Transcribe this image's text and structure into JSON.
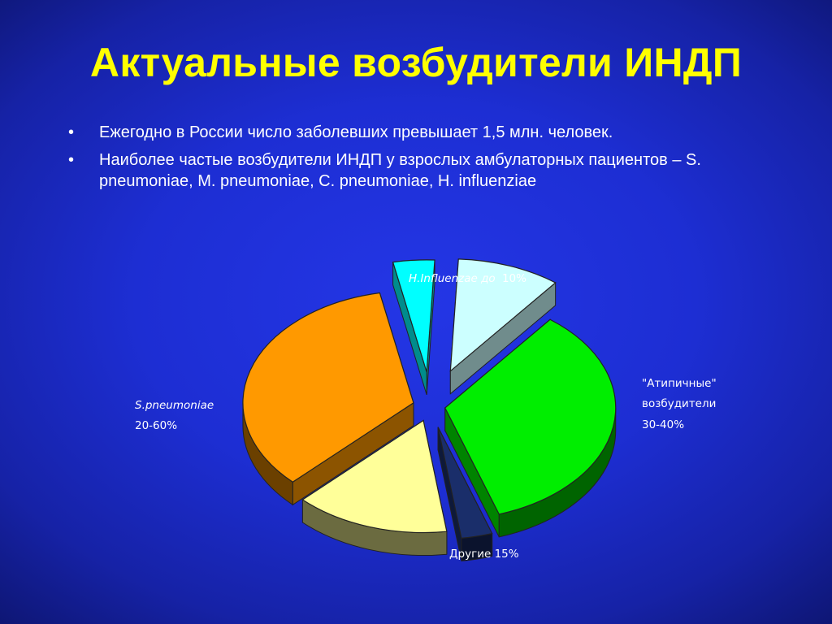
{
  "title": "Актуальные возбудители ИНДП",
  "bullets": [
    "Ежегодно в России число заболевших превышает 1,5 млн. человек.",
    "Наиболее частые возбудители ИНДП у взрослых амбулаторных пациентов – S. pneumoniae, M. pneumoniae, C. pneumoniae, H. influenziae"
  ],
  "bullet_symbol": "•",
  "chart_data": {
    "type": "pie",
    "style": "3d-exploded",
    "slices": [
      {
        "key": "atypical",
        "value": 35,
        "color": "#00ee00",
        "label_lines": [
          "\"Атипичные\"",
          "возбудители",
          "30-40%"
        ]
      },
      {
        "key": "dark",
        "value": 3,
        "color": "#1a2e6a",
        "label_lines": []
      },
      {
        "key": "other",
        "value": 15,
        "color": "#ffff99",
        "label_lines": [
          "Другие 15%"
        ]
      },
      {
        "key": "spneumoniae",
        "value": 35,
        "color": "#ff9900",
        "label_lines": [
          "S.pneumoniae",
          "20-60%"
        ]
      },
      {
        "key": "cyan",
        "value": 4,
        "color": "#00ffff",
        "label_lines": []
      },
      {
        "key": "hinfluenzae",
        "value": 10,
        "color": "#ccffff",
        "label_lines": [
          "H.Influenzae  до 10%"
        ]
      }
    ],
    "label_texts": {
      "hinfluenzae_italic": "H.Influenzae  до",
      "hinfluenzae_value": "10%",
      "spneumoniae_name": "S.pneumoniae",
      "spneumoniae_value": "20-60%",
      "atypical_line1": "\"Атипичные\"",
      "atypical_line2": "возбудители",
      "atypical_line3": "30-40%",
      "other": "Другие 15%"
    }
  }
}
